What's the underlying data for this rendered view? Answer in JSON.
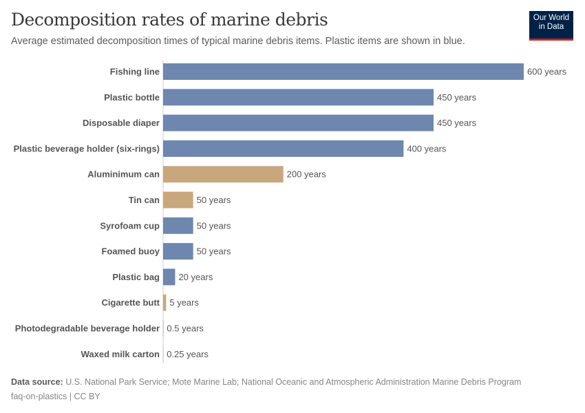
{
  "header": {
    "title": "Decomposition rates of marine debris",
    "subtitle": "Average estimated decomposition times of typical marine debris items. Plastic items are shown in blue.",
    "logo_text": "Our World in Data"
  },
  "chart_data": {
    "type": "bar",
    "orientation": "horizontal",
    "categories": [
      "Fishing line",
      "Plastic bottle",
      "Disposable diaper",
      "Plastic beverage holder (six-rings)",
      "Aluminimum can",
      "Tin can",
      "Syrofoam cup",
      "Foamed buoy",
      "Plastic bag",
      "Cigarette butt",
      "Photodegradable beverage holder",
      "Waxed milk carton"
    ],
    "values": [
      600,
      450,
      450,
      400,
      200,
      50,
      50,
      50,
      20,
      5,
      0.5,
      0.25
    ],
    "data_labels": [
      "600 years",
      "450 years",
      "450 years",
      "400 years",
      "200 years",
      "50 years",
      "50 years",
      "50 years",
      "20 years",
      "5 years",
      "0.5 years",
      "0.25 years"
    ],
    "is_plastic": [
      true,
      true,
      true,
      true,
      false,
      false,
      true,
      true,
      true,
      false,
      true,
      true
    ],
    "colors": {
      "plastic": "#6D87AE",
      "other": "#C9A77C"
    },
    "xlim": [
      0,
      600
    ],
    "grid": false
  },
  "footer": {
    "source_label": "Data source:",
    "source": "U.S. National Park Service; Mote Marine Lab; National Oceanic and Atmospheric Administration Marine Debris Program",
    "note": "faq-on-plastics | CC BY"
  }
}
